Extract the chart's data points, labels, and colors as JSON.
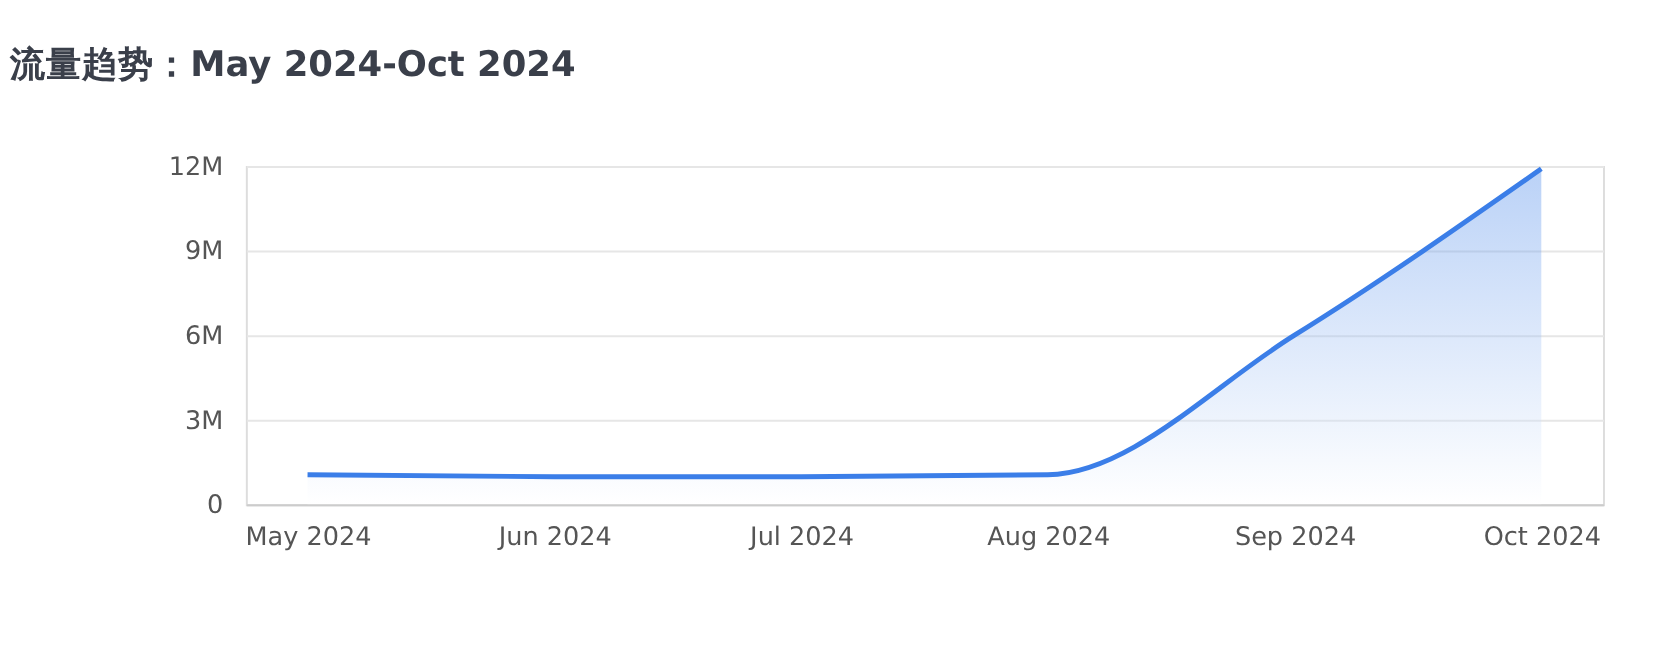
{
  "chart_data": {
    "type": "area",
    "title": "流量趋势：May 2024-Oct 2024",
    "categories": [
      "May 2024",
      "Jun 2024",
      "Jul 2024",
      "Aug 2024",
      "Sep 2024",
      "Oct 2024"
    ],
    "series": [
      {
        "color": "#3b7ee8",
        "values": [
          1050000,
          980000,
          980000,
          1050000,
          6000000,
          11900000
        ]
      }
    ],
    "ylim": [
      0,
      12000000
    ],
    "yticks": [
      {
        "value": 0,
        "label": "0"
      },
      {
        "value": 3000000,
        "label": "3M"
      },
      {
        "value": 6000000,
        "label": "6M"
      },
      {
        "value": 9000000,
        "label": "9M"
      },
      {
        "value": 12000000,
        "label": "12M"
      }
    ],
    "grid": "y"
  }
}
